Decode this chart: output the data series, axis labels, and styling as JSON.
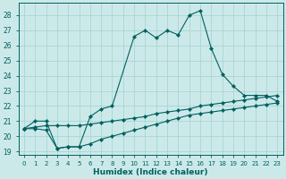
{
  "title": "",
  "xlabel": "Humidex (Indice chaleur)",
  "ylabel": "",
  "xlim": [
    -0.5,
    23.5
  ],
  "ylim": [
    18.8,
    28.8
  ],
  "yticks": [
    19,
    20,
    21,
    22,
    23,
    24,
    25,
    26,
    27,
    28
  ],
  "xticks": [
    0,
    1,
    2,
    3,
    4,
    5,
    6,
    7,
    8,
    9,
    10,
    11,
    12,
    13,
    14,
    15,
    16,
    17,
    18,
    19,
    20,
    21,
    22,
    23
  ],
  "bg_color": "#cce9e9",
  "line_color": "#006060",
  "grid_color": "#aad4d4",
  "series": [
    {
      "x": [
        0,
        1,
        2,
        3,
        4,
        5,
        6,
        7,
        8,
        10,
        11,
        12,
        13,
        14,
        15,
        16,
        17,
        18,
        19,
        20,
        21,
        22,
        23
      ],
      "y": [
        20.5,
        21.0,
        21.0,
        19.2,
        19.3,
        19.3,
        21.3,
        21.8,
        22.0,
        26.6,
        27.0,
        26.5,
        27.0,
        26.7,
        28.0,
        28.3,
        25.8,
        24.1,
        23.3,
        22.7,
        22.7,
        22.7,
        22.3
      ]
    },
    {
      "x": [
        0,
        1,
        2,
        3,
        4,
        5,
        6,
        7,
        8,
        9,
        10,
        11,
        12,
        13,
        14,
        15,
        16,
        17,
        18,
        19,
        20,
        21,
        22,
        23
      ],
      "y": [
        20.5,
        20.6,
        20.7,
        20.7,
        20.7,
        20.7,
        20.8,
        20.9,
        21.0,
        21.1,
        21.2,
        21.3,
        21.5,
        21.6,
        21.7,
        21.8,
        22.0,
        22.1,
        22.2,
        22.3,
        22.4,
        22.5,
        22.6,
        22.7
      ]
    },
    {
      "x": [
        0,
        1,
        2,
        3,
        4,
        5,
        6,
        7,
        8,
        9,
        10,
        11,
        12,
        13,
        14,
        15,
        16,
        17,
        18,
        19,
        20,
        21,
        22,
        23
      ],
      "y": [
        20.5,
        20.5,
        20.4,
        19.2,
        19.3,
        19.3,
        19.5,
        19.8,
        20.0,
        20.2,
        20.4,
        20.6,
        20.8,
        21.0,
        21.2,
        21.4,
        21.5,
        21.6,
        21.7,
        21.8,
        21.9,
        22.0,
        22.1,
        22.2
      ]
    }
  ]
}
